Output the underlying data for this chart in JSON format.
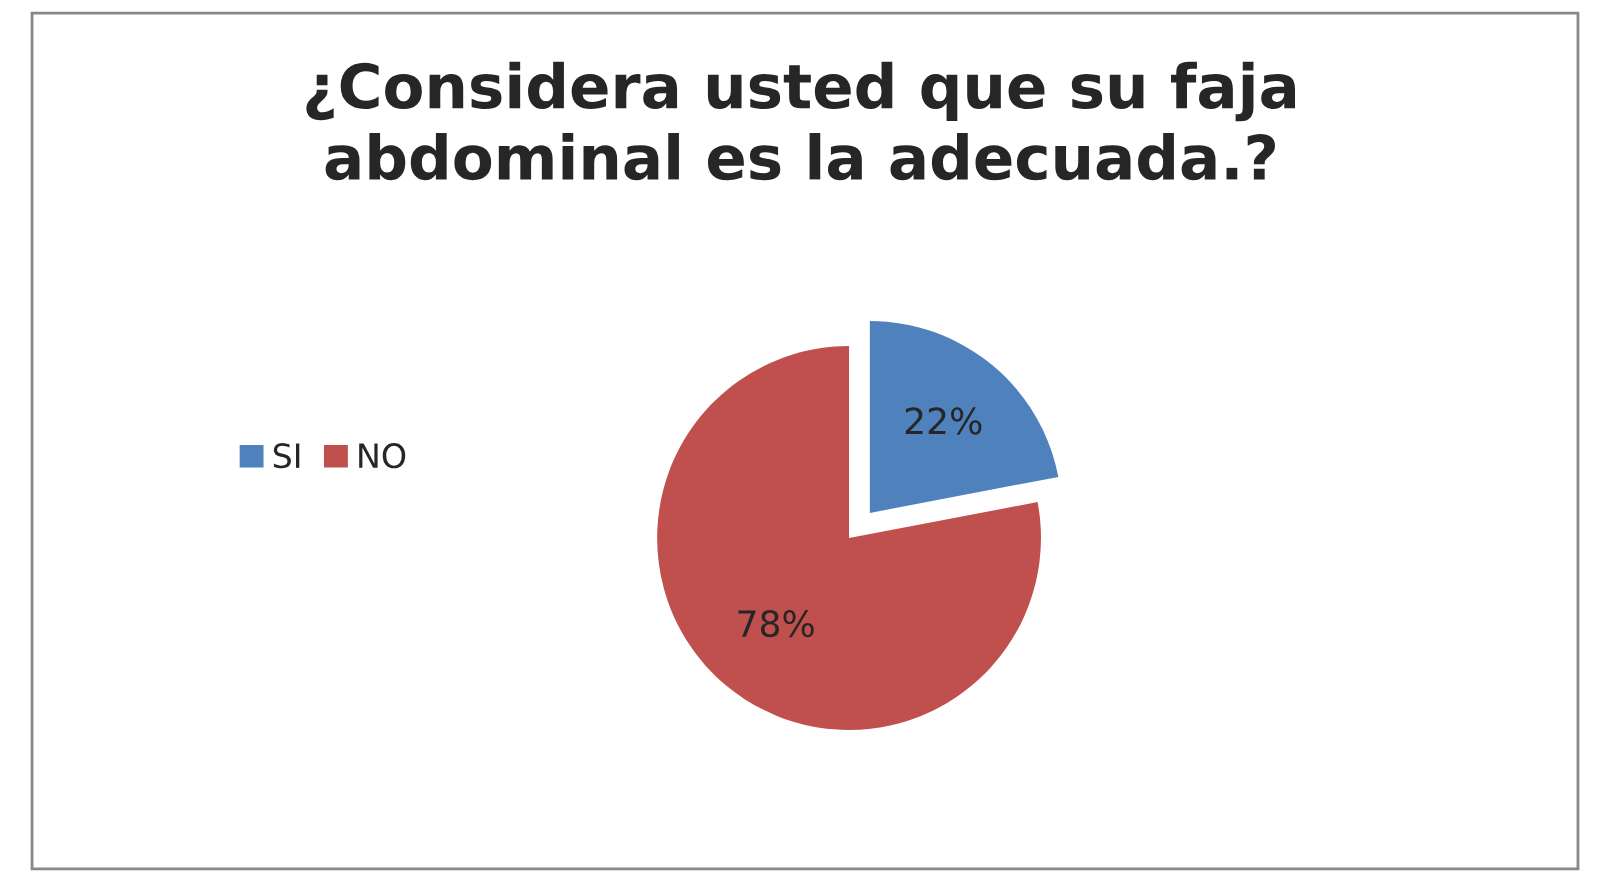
{
  "chart_data": {
    "type": "pie",
    "title": "¿Considera usted que su faja\nabdominal es la adecuada.?",
    "categories": [
      "SI",
      "NO"
    ],
    "values": [
      22,
      78
    ],
    "colors": [
      "#4f81bd",
      "#c0504d"
    ],
    "value_labels": [
      "22%",
      "78%"
    ],
    "legend": "left"
  }
}
